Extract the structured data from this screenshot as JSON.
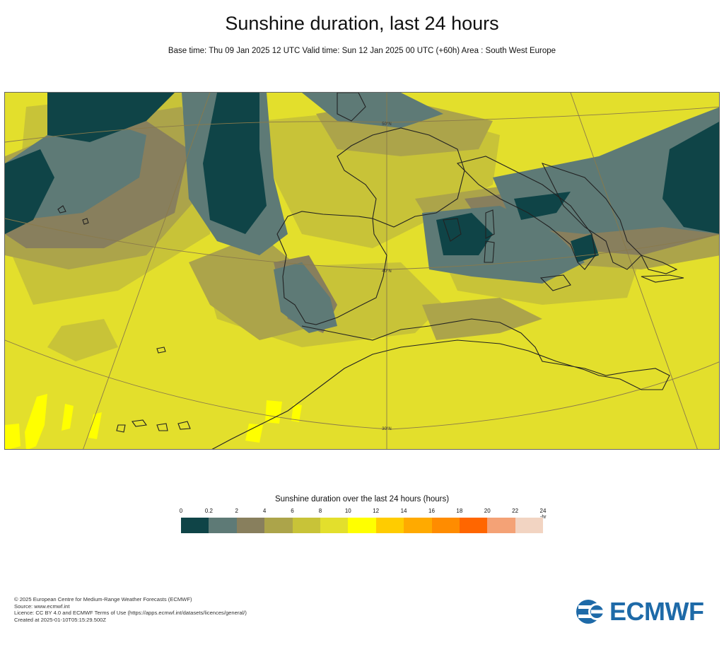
{
  "title": "Sunshine duration, last 24 hours",
  "subtitle": "Base time: Thu 09 Jan 2025 12 UTC Valid time: Sun 12 Jan 2025 00 UTC (+60h) Area : South West Europe",
  "map": {
    "latitude_labels": [
      "50°N",
      "40°N",
      "30°N"
    ],
    "colors": {
      "ocean_base": "#e3df2c",
      "dense_cloud": "#0f4447",
      "cloud": "#5e7a76",
      "overcast_edge": "#887f5d",
      "partial": "#aca44a",
      "mostly_sunny": "#c8c338",
      "coastline": "#222222",
      "graticule": "#8a7a4a"
    }
  },
  "legend": {
    "title": "Sunshine duration over the last 24 hours (hours)",
    "unit": "hr",
    "ticks": [
      "0",
      "0.2",
      "2",
      "4",
      "6",
      "8",
      "10",
      "12",
      "14",
      "16",
      "18",
      "20",
      "22",
      "24"
    ],
    "colors": [
      "#0f4447",
      "#5e7a76",
      "#887f5d",
      "#aca44a",
      "#c8c338",
      "#e3df2c",
      "#ffff00",
      "#ffcc00",
      "#ffaa00",
      "#ff8c00",
      "#ff6600",
      "#f4a276",
      "#f2d4c2"
    ]
  },
  "footer": {
    "line1": "© 2025 European Centre for Medium-Range Weather Forecasts (ECMWF)",
    "line2": "Source: www.ecmwf.int",
    "line3": "Licence: CC BY 4.0 and ECMWF Terms of Use (https://apps.ecmwf.int/datasets/licences/general/)",
    "line4": "Created at 2025-01-10T05:15:29.500Z"
  },
  "logo": {
    "text": "ECMWF",
    "color": "#1e6aa8"
  }
}
